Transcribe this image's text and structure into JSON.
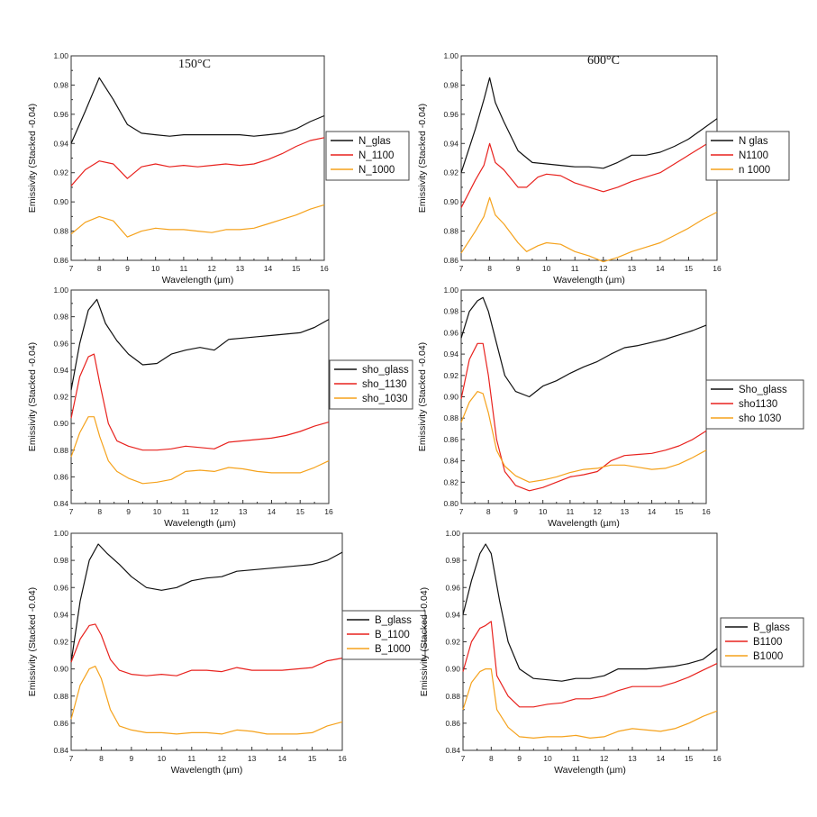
{
  "colors": {
    "black": "#111111",
    "red": "#e8221e",
    "orange": "#f5a21c",
    "axis": "#333333"
  },
  "chart_data": [
    {
      "type": "line",
      "title": "150°C",
      "xlabel": "Wavelength (µm)",
      "ylabel": "Emissivity (Stacked -0.04)",
      "xlim": [
        7,
        16
      ],
      "ylim": [
        0.86,
        1.0
      ],
      "xticks": [
        "7",
        "8",
        "9",
        "10",
        "11",
        "12",
        "13",
        "14",
        "15",
        "16"
      ],
      "yticks": [
        "0.86",
        "0.88",
        "0.90",
        "0.92",
        "0.94",
        "0.96",
        "0.98",
        "1.00"
      ],
      "legend_position": "right",
      "series": [
        {
          "name": "N_glas",
          "color": "#111111",
          "x": [
            7,
            7.5,
            8,
            8.5,
            9,
            9.5,
            10,
            10.5,
            11,
            11.5,
            12,
            12.5,
            13,
            13.5,
            14,
            14.5,
            15,
            15.5,
            16
          ],
          "y": [
            0.94,
            0.962,
            0.985,
            0.97,
            0.953,
            0.947,
            0.946,
            0.945,
            0.946,
            0.946,
            0.946,
            0.946,
            0.946,
            0.945,
            0.946,
            0.947,
            0.95,
            0.955,
            0.959
          ]
        },
        {
          "name": "N_1100",
          "color": "#e8221e",
          "x": [
            7,
            7.5,
            8,
            8.5,
            9,
            9.5,
            10,
            10.5,
            11,
            11.5,
            12,
            12.5,
            13,
            13.5,
            14,
            14.5,
            15,
            15.5,
            16
          ],
          "y": [
            0.911,
            0.922,
            0.928,
            0.926,
            0.916,
            0.924,
            0.926,
            0.924,
            0.925,
            0.924,
            0.925,
            0.926,
            0.925,
            0.926,
            0.929,
            0.933,
            0.938,
            0.942,
            0.944
          ]
        },
        {
          "name": "N_1000",
          "color": "#f5a21c",
          "x": [
            7,
            7.5,
            8,
            8.5,
            9,
            9.5,
            10,
            10.5,
            11,
            11.5,
            12,
            12.5,
            13,
            13.5,
            14,
            14.5,
            15,
            15.5,
            16
          ],
          "y": [
            0.878,
            0.886,
            0.89,
            0.887,
            0.876,
            0.88,
            0.882,
            0.881,
            0.881,
            0.88,
            0.879,
            0.881,
            0.881,
            0.882,
            0.885,
            0.888,
            0.891,
            0.895,
            0.898
          ]
        }
      ]
    },
    {
      "type": "line",
      "title": "600°C",
      "xlabel": "Wavelength (µm)",
      "ylabel": "Emissivity (Stacked -0.04)",
      "xlim": [
        7,
        16
      ],
      "ylim": [
        0.86,
        1.0
      ],
      "xticks": [
        "7",
        "8",
        "9",
        "10",
        "11",
        "12",
        "13",
        "14",
        "15",
        "16"
      ],
      "yticks": [
        "0.86",
        "0.88",
        "0.90",
        "0.92",
        "0.94",
        "0.96",
        "0.98",
        "1.00"
      ],
      "legend_position": "right",
      "series": [
        {
          "name": "N glas",
          "color": "#111111",
          "x": [
            7,
            7.5,
            7.8,
            8,
            8.2,
            8.5,
            9,
            9.5,
            10,
            10.5,
            11,
            11.5,
            12,
            12.5,
            13,
            13.5,
            14,
            14.5,
            15,
            15.5,
            16
          ],
          "y": [
            0.92,
            0.95,
            0.97,
            0.985,
            0.968,
            0.955,
            0.935,
            0.927,
            0.926,
            0.925,
            0.924,
            0.924,
            0.923,
            0.927,
            0.932,
            0.932,
            0.934,
            0.938,
            0.943,
            0.95,
            0.957
          ]
        },
        {
          "name": "N1100",
          "color": "#e8221e",
          "x": [
            7,
            7.5,
            7.8,
            8,
            8.2,
            8.5,
            9,
            9.3,
            9.7,
            10,
            10.5,
            11,
            11.5,
            12,
            12.5,
            13,
            13.5,
            14,
            14.5,
            15,
            15.5,
            16
          ],
          "y": [
            0.896,
            0.915,
            0.925,
            0.94,
            0.927,
            0.922,
            0.91,
            0.91,
            0.917,
            0.919,
            0.918,
            0.913,
            0.91,
            0.907,
            0.91,
            0.914,
            0.917,
            0.92,
            0.926,
            0.932,
            0.938,
            0.944
          ]
        },
        {
          "name": "n 1000",
          "color": "#f5a21c",
          "x": [
            7,
            7.5,
            7.8,
            8,
            8.2,
            8.5,
            9,
            9.3,
            9.7,
            10,
            10.5,
            11,
            11.5,
            12,
            12.5,
            13,
            13.5,
            14,
            14.5,
            15,
            15.5,
            16
          ],
          "y": [
            0.865,
            0.88,
            0.89,
            0.903,
            0.891,
            0.885,
            0.872,
            0.866,
            0.87,
            0.872,
            0.871,
            0.866,
            0.863,
            0.859,
            0.862,
            0.866,
            0.869,
            0.872,
            0.877,
            0.882,
            0.888,
            0.893
          ]
        }
      ]
    },
    {
      "type": "line",
      "title": "",
      "xlabel": "Wavelength (µm)",
      "ylabel": "Emissivity (Stacked -0.04)",
      "xlim": [
        7,
        16
      ],
      "ylim": [
        0.84,
        1.0
      ],
      "xticks": [
        "7",
        "8",
        "9",
        "10",
        "11",
        "12",
        "13",
        "14",
        "15",
        "16"
      ],
      "yticks": [
        "0.84",
        "0.86",
        "0.88",
        "0.90",
        "0.92",
        "0.94",
        "0.96",
        "0.98",
        "1.00"
      ],
      "legend_position": "right",
      "series": [
        {
          "name": "sho_glass",
          "color": "#111111",
          "x": [
            7,
            7.3,
            7.6,
            7.9,
            8.2,
            8.6,
            9,
            9.5,
            10,
            10.5,
            11,
            11.5,
            12,
            12.5,
            13,
            13.5,
            14,
            14.5,
            15,
            15.5,
            16
          ],
          "y": [
            0.925,
            0.96,
            0.985,
            0.993,
            0.975,
            0.962,
            0.952,
            0.944,
            0.945,
            0.952,
            0.955,
            0.957,
            0.955,
            0.963,
            0.964,
            0.965,
            0.966,
            0.967,
            0.968,
            0.972,
            0.978
          ]
        },
        {
          "name": "sho_1130",
          "color": "#e8221e",
          "x": [
            7,
            7.3,
            7.6,
            7.8,
            8,
            8.3,
            8.6,
            9,
            9.5,
            10,
            10.5,
            11,
            11.5,
            12,
            12.5,
            13,
            13.5,
            14,
            14.5,
            15,
            15.5,
            16
          ],
          "y": [
            0.904,
            0.935,
            0.95,
            0.952,
            0.93,
            0.9,
            0.887,
            0.883,
            0.88,
            0.88,
            0.881,
            0.883,
            0.882,
            0.881,
            0.886,
            0.887,
            0.888,
            0.889,
            0.891,
            0.894,
            0.898,
            0.901
          ]
        },
        {
          "name": "sho_1030",
          "color": "#f5a21c",
          "x": [
            7,
            7.3,
            7.6,
            7.8,
            8,
            8.3,
            8.6,
            9,
            9.5,
            10,
            10.5,
            11,
            11.5,
            12,
            12.5,
            13,
            13.5,
            14,
            14.5,
            15,
            15.5,
            16
          ],
          "y": [
            0.875,
            0.893,
            0.905,
            0.905,
            0.89,
            0.872,
            0.864,
            0.859,
            0.855,
            0.856,
            0.858,
            0.864,
            0.865,
            0.864,
            0.867,
            0.866,
            0.864,
            0.863,
            0.863,
            0.863,
            0.867,
            0.872
          ]
        }
      ]
    },
    {
      "type": "line",
      "title": "",
      "xlabel": "Wavelength (µm)",
      "ylabel": "Emissivity (Stacked -0.04)",
      "xlim": [
        7,
        16
      ],
      "ylim": [
        0.8,
        1.0
      ],
      "xticks": [
        "7",
        "8",
        "9",
        "10",
        "11",
        "12",
        "13",
        "14",
        "15",
        "16"
      ],
      "yticks": [
        "0.80",
        "0.82",
        "0.84",
        "0.86",
        "0.88",
        "0.90",
        "0.92",
        "0.94",
        "0.96",
        "0.98",
        "1.00"
      ],
      "legend_position": "right",
      "series": [
        {
          "name": "Sho_glass",
          "color": "#111111",
          "x": [
            7,
            7.3,
            7.6,
            7.8,
            8,
            8.3,
            8.6,
            9,
            9.5,
            10,
            10.5,
            11,
            11.5,
            12,
            12.5,
            13,
            13.5,
            14,
            14.5,
            15,
            15.5,
            16
          ],
          "y": [
            0.955,
            0.98,
            0.99,
            0.993,
            0.98,
            0.95,
            0.92,
            0.905,
            0.9,
            0.91,
            0.915,
            0.922,
            0.928,
            0.933,
            0.94,
            0.946,
            0.948,
            0.951,
            0.954,
            0.958,
            0.962,
            0.967
          ]
        },
        {
          "name": "sho1130",
          "color": "#e8221e",
          "x": [
            7,
            7.3,
            7.6,
            7.8,
            8,
            8.3,
            8.6,
            9,
            9.5,
            10,
            10.5,
            11,
            11.5,
            12,
            12.5,
            13,
            13.5,
            14,
            14.5,
            15,
            15.5,
            16
          ],
          "y": [
            0.898,
            0.935,
            0.95,
            0.95,
            0.92,
            0.86,
            0.83,
            0.817,
            0.812,
            0.815,
            0.82,
            0.825,
            0.827,
            0.83,
            0.84,
            0.845,
            0.846,
            0.847,
            0.85,
            0.854,
            0.86,
            0.868
          ]
        },
        {
          "name": "sho 1030",
          "color": "#f5a21c",
          "x": [
            7,
            7.3,
            7.6,
            7.8,
            8,
            8.3,
            8.6,
            9,
            9.5,
            10,
            10.5,
            11,
            11.5,
            12,
            12.5,
            13,
            13.5,
            14,
            14.5,
            15,
            15.5,
            16
          ],
          "y": [
            0.876,
            0.895,
            0.905,
            0.903,
            0.885,
            0.85,
            0.835,
            0.826,
            0.82,
            0.822,
            0.825,
            0.829,
            0.832,
            0.833,
            0.836,
            0.836,
            0.834,
            0.832,
            0.833,
            0.837,
            0.843,
            0.85
          ]
        }
      ]
    },
    {
      "type": "line",
      "title": "",
      "xlabel": "Wavelength (µm)",
      "ylabel": "Emissivity (Stacked -0.04)",
      "xlim": [
        7,
        16
      ],
      "ylim": [
        0.84,
        1.0
      ],
      "xticks": [
        "7",
        "8",
        "9",
        "10",
        "11",
        "12",
        "13",
        "14",
        "15",
        "16"
      ],
      "yticks": [
        "0.84",
        "0.86",
        "0.88",
        "0.90",
        "0.92",
        "0.94",
        "0.96",
        "0.98",
        "1.00"
      ],
      "legend_position": "right",
      "series": [
        {
          "name": "B_glass",
          "color": "#111111",
          "x": [
            7,
            7.3,
            7.6,
            7.9,
            8.2,
            8.6,
            9,
            9.5,
            10,
            10.5,
            11,
            11.5,
            12,
            12.5,
            13,
            13.5,
            14,
            14.5,
            15,
            15.5,
            16
          ],
          "y": [
            0.905,
            0.95,
            0.98,
            0.992,
            0.985,
            0.977,
            0.968,
            0.96,
            0.958,
            0.96,
            0.965,
            0.967,
            0.968,
            0.972,
            0.973,
            0.974,
            0.975,
            0.976,
            0.977,
            0.98,
            0.986
          ]
        },
        {
          "name": "B_1100",
          "color": "#e8221e",
          "x": [
            7,
            7.3,
            7.6,
            7.8,
            8,
            8.3,
            8.6,
            9,
            9.5,
            10,
            10.5,
            11,
            11.5,
            12,
            12.5,
            13,
            13.5,
            14,
            14.5,
            15,
            15.5,
            16
          ],
          "y": [
            0.905,
            0.922,
            0.932,
            0.933,
            0.925,
            0.907,
            0.899,
            0.896,
            0.895,
            0.896,
            0.895,
            0.899,
            0.899,
            0.898,
            0.901,
            0.899,
            0.899,
            0.899,
            0.9,
            0.901,
            0.906,
            0.908
          ]
        },
        {
          "name": "B_1000",
          "color": "#f5a21c",
          "x": [
            7,
            7.3,
            7.6,
            7.8,
            8,
            8.3,
            8.6,
            9,
            9.5,
            10,
            10.5,
            11,
            11.5,
            12,
            12.5,
            13,
            13.5,
            14,
            14.5,
            15,
            15.5,
            16
          ],
          "y": [
            0.863,
            0.888,
            0.9,
            0.902,
            0.893,
            0.87,
            0.858,
            0.855,
            0.853,
            0.853,
            0.852,
            0.853,
            0.853,
            0.852,
            0.855,
            0.854,
            0.852,
            0.852,
            0.852,
            0.853,
            0.858,
            0.861
          ]
        }
      ]
    },
    {
      "type": "line",
      "title": "",
      "xlabel": "Wavelength (µm)",
      "ylabel": "Emissivity (Stacked -0.04)",
      "xlim": [
        7,
        16
      ],
      "ylim": [
        0.84,
        1.0
      ],
      "xticks": [
        "7",
        "8",
        "9",
        "10",
        "11",
        "12",
        "13",
        "14",
        "15",
        "16"
      ],
      "yticks": [
        "0.84",
        "0.86",
        "0.88",
        "0.90",
        "0.92",
        "0.94",
        "0.96",
        "0.98",
        "1.00"
      ],
      "legend_position": "right",
      "series": [
        {
          "name": "B_glass",
          "color": "#111111",
          "x": [
            7,
            7.3,
            7.6,
            7.8,
            8,
            8.3,
            8.6,
            9,
            9.5,
            10,
            10.5,
            11,
            11.5,
            12,
            12.5,
            13,
            13.5,
            14,
            14.5,
            15,
            15.5,
            16
          ],
          "y": [
            0.94,
            0.965,
            0.985,
            0.992,
            0.985,
            0.95,
            0.92,
            0.9,
            0.893,
            0.892,
            0.891,
            0.893,
            0.893,
            0.895,
            0.9,
            0.9,
            0.9,
            0.901,
            0.902,
            0.904,
            0.907,
            0.915
          ]
        },
        {
          "name": "B1100",
          "color": "#e8221e",
          "x": [
            7,
            7.3,
            7.6,
            7.8,
            8,
            8.2,
            8.6,
            9,
            9.5,
            10,
            10.5,
            11,
            11.5,
            12,
            12.5,
            13,
            13.5,
            14,
            14.5,
            15,
            15.5,
            16
          ],
          "y": [
            0.898,
            0.92,
            0.93,
            0.932,
            0.935,
            0.895,
            0.88,
            0.872,
            0.872,
            0.874,
            0.875,
            0.878,
            0.878,
            0.88,
            0.884,
            0.887,
            0.887,
            0.887,
            0.89,
            0.894,
            0.899,
            0.904
          ]
        },
        {
          "name": "B1000",
          "color": "#f5a21c",
          "x": [
            7,
            7.3,
            7.6,
            7.8,
            8,
            8.2,
            8.6,
            9,
            9.5,
            10,
            10.5,
            11,
            11.5,
            12,
            12.5,
            13,
            13.5,
            14,
            14.5,
            15,
            15.5,
            16
          ],
          "y": [
            0.87,
            0.89,
            0.898,
            0.9,
            0.9,
            0.87,
            0.857,
            0.85,
            0.849,
            0.85,
            0.85,
            0.851,
            0.849,
            0.85,
            0.854,
            0.856,
            0.855,
            0.854,
            0.856,
            0.86,
            0.865,
            0.869
          ]
        }
      ]
    }
  ]
}
